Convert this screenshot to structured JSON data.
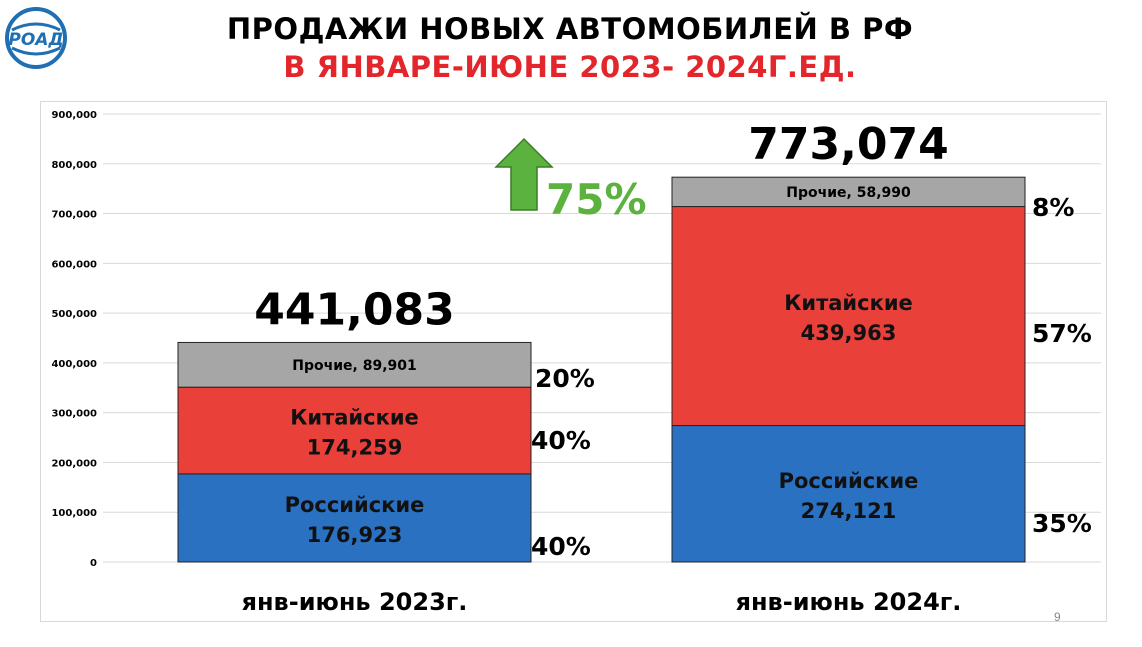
{
  "logo": {
    "text": "РОАД",
    "icon": "road-logo-icon",
    "color": "#1f6fb2"
  },
  "header": {
    "title": "ПРОДАЖИ НОВЫХ АВТОМОБИЛЕЙ В РФ",
    "subtitle": "В ЯНВАРЕ-ИЮНЕ 2023- 2024Г.ЕД."
  },
  "page_number": "9",
  "chart_data": {
    "type": "bar",
    "stacked": true,
    "categories": [
      "янв-июнь 2023г.",
      "янв-июнь 2024г."
    ],
    "ylim": [
      0,
      900000
    ],
    "yticks": [
      "0",
      "100,000",
      "200,000",
      "300,000",
      "400,000",
      "500,000",
      "600,000",
      "700,000",
      "800,000",
      "900,000"
    ],
    "grid": true,
    "series": [
      {
        "label_name": "Российские",
        "values": [
          176923,
          274121
        ],
        "value_labels": [
          "176,923",
          "274,121"
        ],
        "percents": [
          "40%",
          "35%"
        ],
        "color": "#2a71c1"
      },
      {
        "label_name": "Китайские",
        "values": [
          174259,
          439963
        ],
        "value_labels": [
          "174,259",
          "439,963"
        ],
        "percents": [
          "40%",
          "57%"
        ],
        "color": "#e9403a"
      },
      {
        "label_name": "Прочие",
        "values": [
          89901,
          58990
        ],
        "value_labels": [
          "Прочие, 89,901",
          "Прочие, 58,990"
        ],
        "percents": [
          "20%",
          "8%"
        ],
        "color": "#a6a6a6"
      }
    ],
    "totals": [
      "441,083",
      "773,074"
    ],
    "growth": {
      "text": "75%",
      "color": "#5cb23e"
    }
  }
}
